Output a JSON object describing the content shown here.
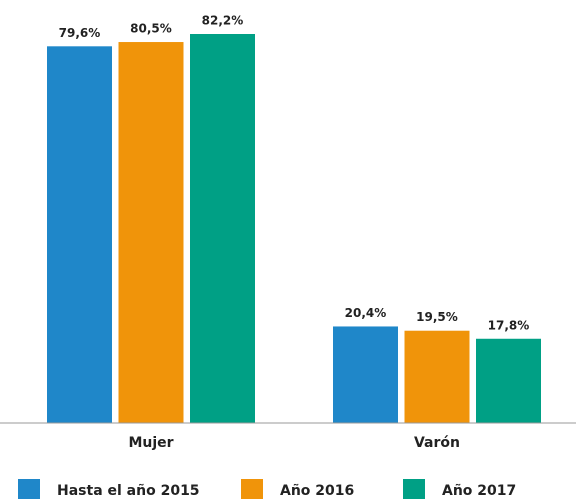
{
  "chart_data": {
    "type": "bar",
    "categories": [
      "Mujer",
      "Varón"
    ],
    "series": [
      {
        "name": "Hasta el año 2015",
        "color": "#1f87c9",
        "values": [
          79.6,
          20.4
        ],
        "value_labels": [
          "79,6%",
          "20,4%"
        ]
      },
      {
        "name": "Año 2016",
        "color": "#f0940a",
        "values": [
          80.5,
          19.5
        ],
        "value_labels": [
          "80,5%",
          "19,5%"
        ]
      },
      {
        "name": "Año 2017",
        "color": "#00a085",
        "values": [
          82.2,
          17.8
        ],
        "value_labels": [
          "82,2%",
          "17,8%"
        ]
      }
    ]
  }
}
